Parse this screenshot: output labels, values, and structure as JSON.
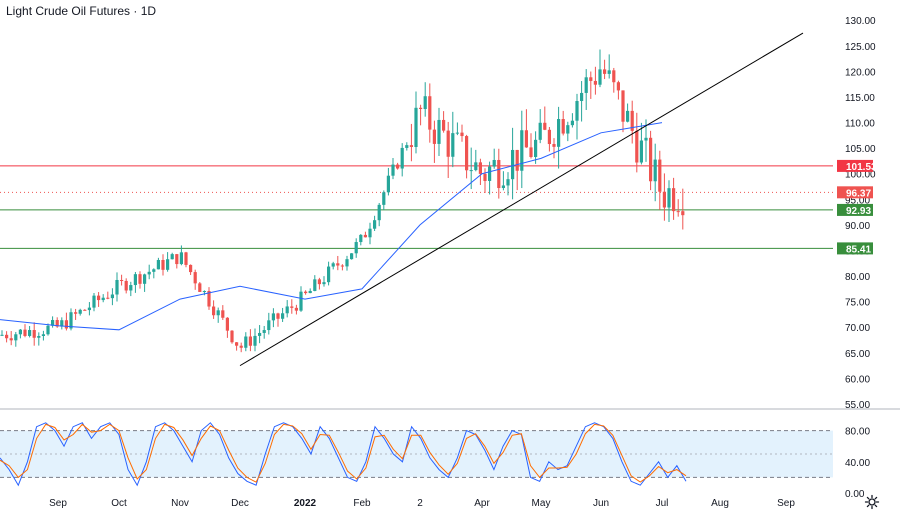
{
  "title": "Light Crude Oil Futures · 1D",
  "colors": {
    "up": "#26a69a",
    "down": "#ef5350",
    "ma": "#2962ff",
    "trendline": "#000000",
    "resistance": "#f23645",
    "support": "#388e3c",
    "stoch_k": "#2962ff",
    "stoch_d": "#ff6d00",
    "stoch_band": "#e3f2fd"
  },
  "chart_data": [
    {
      "type": "candlestick",
      "title": "Light Crude Oil Futures · 1D",
      "ylim": [
        55,
        132
      ],
      "y_ticks": [
        "130.00",
        "125.00",
        "120.00",
        "115.00",
        "110.00",
        "105.00",
        "100.00",
        "95.00",
        "90.00",
        "85.00",
        "80.00",
        "75.00",
        "70.00",
        "65.00",
        "60.00",
        "55.00"
      ],
      "x_ticks": [
        "Sep",
        "Oct",
        "Nov",
        "Dec",
        "2022",
        "Feb",
        "2",
        "Apr",
        "May",
        "Jun",
        "Jul",
        "Aug",
        "Sep"
      ],
      "last_price": "96.37",
      "levels": [
        {
          "label": "101.53",
          "value": 101.53,
          "color": "resistance"
        },
        {
          "label": "92.93",
          "value": 92.93,
          "color": "support"
        },
        {
          "label": "85.41",
          "value": 85.41,
          "color": "support"
        }
      ],
      "trendline": {
        "from": {
          "date": "Dec 2021",
          "value": 62.5
        },
        "to": {
          "date": "Sep 2022",
          "value": 127.5
        }
      },
      "moving_average": [
        {
          "date": "Aug 2021",
          "value": 71.5
        },
        {
          "date": "Sep 2021",
          "value": 70.3
        },
        {
          "date": "Oct 2021",
          "value": 69.5
        },
        {
          "date": "Nov 2021",
          "value": 75.5
        },
        {
          "date": "Dec 2021",
          "value": 78.0
        },
        {
          "date": "Jan 2022",
          "value": 75.5
        },
        {
          "date": "Feb 2022",
          "value": 77.5
        },
        {
          "date": "Mar 2022",
          "value": 90.0
        },
        {
          "date": "Apr 2022",
          "value": 100.0
        },
        {
          "date": "May 2022",
          "value": 103.0
        },
        {
          "date": "Jun 2022",
          "value": 108.0
        },
        {
          "date": "Jul 2022",
          "value": 110.0
        }
      ],
      "series": [
        {
          "date": "Aug 2021",
          "close": 68.5
        },
        {
          "date": "Sep 2021",
          "close": 70.0
        },
        {
          "date": "Oct 2021",
          "close": 78.0
        },
        {
          "date": "Nov 2021",
          "close": 84.0
        },
        {
          "date": "Dec 2021",
          "close": 66.0
        },
        {
          "date": "Jan 2022",
          "close": 76.0
        },
        {
          "date": "Feb 2022",
          "close": 87.0
        },
        {
          "date": "Mar 2022",
          "close": 112.0
        },
        {
          "date": "Apr 2022",
          "close": 100.0
        },
        {
          "date": "May 2022",
          "close": 106.0
        },
        {
          "date": "Jun 2022",
          "close": 121.0
        },
        {
          "date": "Jul 2022",
          "close": 96.37
        }
      ]
    },
    {
      "type": "line",
      "name": "stochastic",
      "ylim": [
        0,
        100
      ],
      "y_ticks": [
        "80.00",
        "40.00",
        "0.00"
      ],
      "band": [
        20,
        80
      ],
      "midline": 50,
      "series": [
        {
          "name": "%K",
          "values": [
            45,
            30,
            10,
            40,
            85,
            90,
            80,
            60,
            85,
            90,
            70,
            85,
            90,
            75,
            30,
            10,
            40,
            85,
            90,
            80,
            60,
            40,
            80,
            90,
            75,
            45,
            25,
            15,
            10,
            50,
            85,
            90,
            85,
            70,
            50,
            85,
            70,
            45,
            20,
            15,
            40,
            85,
            70,
            50,
            40,
            85,
            70,
            45,
            30,
            20,
            45,
            80,
            75,
            55,
            30,
            60,
            80,
            75,
            20,
            15,
            40,
            30,
            35,
            60,
            85,
            90,
            85,
            70,
            40,
            15,
            10,
            25,
            40,
            20,
            35,
            15
          ]
        },
        {
          "name": "%D",
          "values": [
            42,
            35,
            20,
            30,
            70,
            88,
            84,
            68,
            75,
            88,
            78,
            80,
            88,
            80,
            45,
            18,
            30,
            70,
            88,
            84,
            68,
            48,
            70,
            86,
            80,
            55,
            32,
            20,
            14,
            38,
            75,
            88,
            86,
            76,
            56,
            75,
            74,
            52,
            28,
            18,
            32,
            72,
            74,
            56,
            44,
            74,
            74,
            52,
            36,
            24,
            38,
            70,
            76,
            60,
            38,
            52,
            74,
            76,
            35,
            20,
            32,
            32,
            33,
            50,
            76,
            88,
            86,
            74,
            48,
            22,
            14,
            22,
            34,
            26,
            30,
            22
          ]
        }
      ]
    }
  ]
}
